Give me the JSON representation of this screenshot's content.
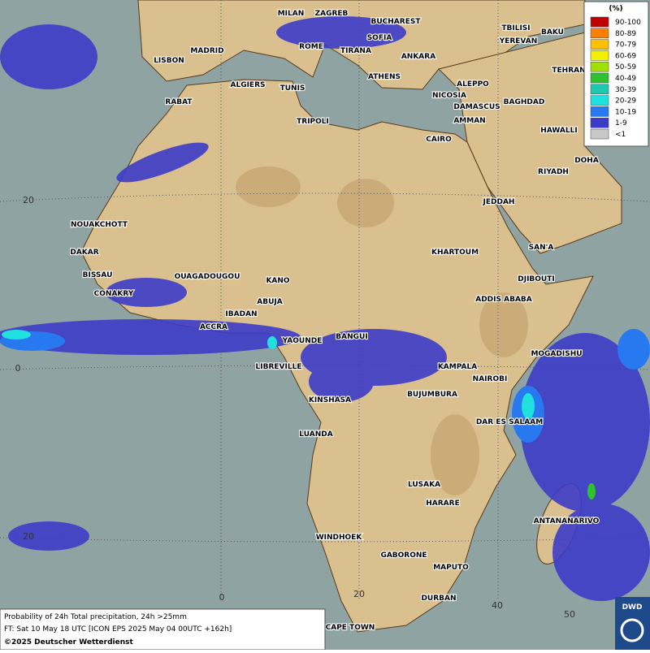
{
  "map": {
    "cities": [
      "MILAN",
      "ZAGREB",
      "BUCHAREST",
      "TBILISI",
      "BAKU",
      "MADRID",
      "ROME",
      "SOFIA",
      "YEREVAN",
      "LISBON",
      "TIRANA",
      "ANKARA",
      "TEHRAN",
      "ALGIERS",
      "TUNIS",
      "ATHENS",
      "ALEPPO",
      "RABAT",
      "NICOSIA",
      "BAGHDAD",
      "DAMASCUS",
      "TRIPOLI",
      "AMMAN",
      "HAWALLI",
      "CAIRO",
      "DOHA",
      "RIYADH",
      "JEDDAH",
      "NOUAKCHOTT",
      "SAN'A",
      "DAKAR",
      "KHARTOUM",
      "BISSAU",
      "OUAGADOUGOU",
      "KANO",
      "DJIBOUTI",
      "CONAKRY",
      "ABUJA",
      "ADDIS ABABA",
      "IBADAN",
      "ACCRA",
      "BANGUI",
      "YAOUNDE",
      "MOGADISHU",
      "LIBREVILLE",
      "KAMPALA",
      "NAIROBI",
      "BUJUMBURA",
      "KINSHASA",
      "DAR ES SALAAM",
      "LUANDA",
      "LUSAKA",
      "HARARE",
      "ANTANANARIVO",
      "WINDHOEK",
      "GABORONE",
      "MAPUTO",
      "DURBAN",
      "CAPE TOWN"
    ],
    "grid_labels": [
      "20",
      "0",
      "20",
      "0",
      "20",
      "40",
      "50"
    ]
  },
  "legend": {
    "title": "(%)",
    "items": [
      {
        "label": "90-100",
        "color": "#c00000"
      },
      {
        "label": "80-89",
        "color": "#ff8000"
      },
      {
        "label": "70-79",
        "color": "#ffc000"
      },
      {
        "label": "60-69",
        "color": "#f0f000"
      },
      {
        "label": "50-59",
        "color": "#a0e000"
      },
      {
        "label": "40-49",
        "color": "#30c030"
      },
      {
        "label": "30-39",
        "color": "#20c8b0"
      },
      {
        "label": "20-29",
        "color": "#20e0e0"
      },
      {
        "label": "10-19",
        "color": "#2878f0"
      },
      {
        "label": "1-9",
        "color": "#3c3cc8"
      },
      {
        "label": "<1",
        "color": "#c8c8c8"
      }
    ]
  },
  "footer": {
    "line1": "Probability of 24h Total precipitation, 24h >25mm",
    "line2": "FT: Sat 10 May 18 UTC [ICON EPS 2025 May 04 00UTC +162h]",
    "line3": "©2025 Deutscher Wetterdienst"
  },
  "logo": "DWD"
}
